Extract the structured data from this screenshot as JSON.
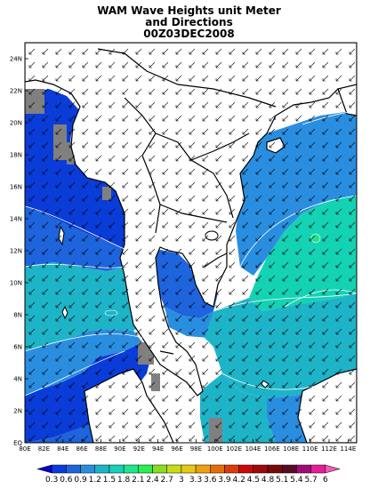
{
  "title": {
    "line1": "WAM Wave Heights unit Meter",
    "line2": "and Directions",
    "line3": "00Z03DEC2008"
  },
  "map": {
    "lon_ticks": [
      "80E",
      "82E",
      "84E",
      "86E",
      "88E",
      "90E",
      "92E",
      "94E",
      "96E",
      "98E",
      "100E",
      "102E",
      "104E",
      "106E",
      "108E",
      "110E",
      "112E",
      "114E"
    ],
    "lat_ticks": [
      "EQ",
      "2N",
      "4N",
      "6N",
      "8N",
      "10N",
      "12N",
      "14N",
      "16N",
      "18N",
      "20N",
      "22N",
      "24N"
    ],
    "lon_range": [
      80,
      115
    ],
    "lat_range": [
      0,
      25
    ]
  },
  "colorbar": {
    "labels": [
      "0.3",
      "0.6",
      "0.9",
      "1.2",
      "1.5",
      "1.8",
      "2.1",
      "2.4",
      "2.7",
      "3",
      "3.3",
      "3.6",
      "3.9",
      "4.2",
      "4.5",
      "4.8",
      "5.1",
      "5.4",
      "5.7",
      "6"
    ],
    "colors": [
      "#0000cd",
      "#0a3cd8",
      "#1e64dc",
      "#2a8ee0",
      "#1eb4c8",
      "#14d2b4",
      "#1ee68c",
      "#28f050",
      "#8cdc1e",
      "#c8dc14",
      "#e6c814",
      "#f0a00a",
      "#e66e0a",
      "#dc3c0a",
      "#c80a0a",
      "#a00a0a",
      "#780a0a",
      "#5a0a28",
      "#a00a78",
      "#e61e96",
      "#f05ab4"
    ]
  },
  "legend_colors": {
    "land": "#ffffff",
    "masked": "#808080",
    "wave_0_6": "#0a3cd8",
    "wave_0_9": "#1e64dc",
    "wave_1_2": "#2a8ee0",
    "wave_1_5": "#1eb4c8",
    "wave_1_8": "#14d2b4"
  }
}
